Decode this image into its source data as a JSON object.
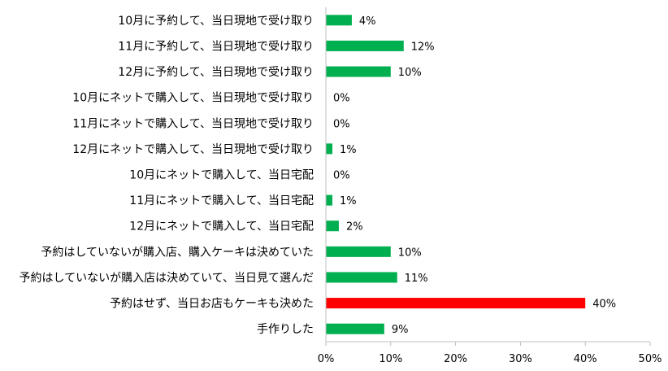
{
  "chart_data": {
    "type": "bar",
    "orientation": "horizontal",
    "categories": [
      "10月に予約して、当日現地で受け取り",
      "11月に予約して、当日現地で受け取り",
      "12月に予約して、当日現地で受け取り",
      "10月にネットで購入して、当日現地で受け取り",
      "11月にネットで購入して、当日現地で受け取り",
      "12月にネットで購入して、当日現地で受け取り",
      "10月にネットで購入して、当日宅配",
      "11月にネットで購入して、当日宅配",
      "12月にネットで購入して、当日宅配",
      "予約はしていないが購入店、購入ケーキは決めていた",
      "予約はしていないが購入店は決めていて、当日見て選んだ",
      "予約はせず、当日お店もケーキも決めた",
      "手作りした"
    ],
    "values": [
      4,
      12,
      10,
      0,
      0,
      1,
      0,
      1,
      2,
      10,
      11,
      40,
      9
    ],
    "value_labels": [
      "4%",
      "12%",
      "10%",
      "0%",
      "0%",
      "1%",
      "0%",
      "1%",
      "2%",
      "10%",
      "11%",
      "40%",
      "9%"
    ],
    "xlim": [
      0,
      50
    ],
    "x_ticks": [
      "0%",
      "10%",
      "20%",
      "30%",
      "40%",
      "50%"
    ],
    "grid": false,
    "colors": {
      "default": "#00b050",
      "highlight": "#ff0000",
      "axis": "#bfbfbf"
    },
    "highlight_index": 11
  }
}
